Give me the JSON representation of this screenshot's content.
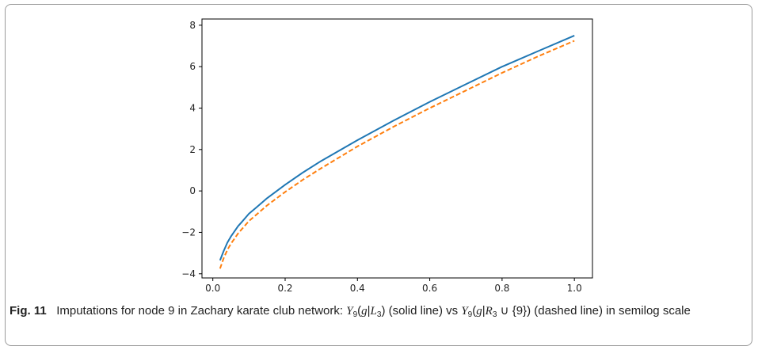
{
  "figure": {
    "label": "Fig. 11",
    "caption": {
      "intro": "Imputations for node 9 in Zachary karate club network:",
      "solid_desc": "(solid line) vs",
      "dashed_desc": "(dashed line) in semilog scale",
      "expr_solid": {
        "y": "Y",
        "y_sub": "9",
        "g": "g",
        "set": "L",
        "set_sub": "3"
      },
      "expr_dashed": {
        "y": "Y",
        "y_sub": "9",
        "g": "g",
        "set": "R",
        "set_sub": "3",
        "union": "∪ {9}"
      }
    }
  },
  "chart_data": {
    "type": "line",
    "xlim": [
      -0.03,
      1.05
    ],
    "ylim": [
      -4.2,
      8.3
    ],
    "xticks": [
      0.0,
      0.2,
      0.4,
      0.6,
      0.8,
      1.0
    ],
    "xtick_labels": [
      "0.0",
      "0.2",
      "0.4",
      "0.6",
      "0.8",
      "1.0"
    ],
    "yticks": [
      -4,
      -2,
      0,
      2,
      4,
      6,
      8
    ],
    "ytick_labels": [
      "−4",
      "−2",
      "0",
      "2",
      "4",
      "6",
      "8"
    ],
    "grid": false,
    "series": [
      {
        "style": "solid",
        "color": "#1f77b4",
        "x": [
          0.02,
          0.03,
          0.04,
          0.05,
          0.06,
          0.07,
          0.08,
          0.1,
          0.12,
          0.15,
          0.2,
          0.25,
          0.3,
          0.4,
          0.5,
          0.6,
          0.7,
          0.8,
          0.9,
          1.0
        ],
        "y": [
          -3.35,
          -2.9,
          -2.5,
          -2.2,
          -1.95,
          -1.7,
          -1.5,
          -1.1,
          -0.8,
          -0.35,
          0.3,
          0.9,
          1.45,
          2.45,
          3.4,
          4.3,
          5.15,
          6.0,
          6.75,
          7.5
        ]
      },
      {
        "style": "dashed",
        "color": "#ff7f0e",
        "x": [
          0.02,
          0.03,
          0.04,
          0.05,
          0.06,
          0.07,
          0.08,
          0.1,
          0.12,
          0.15,
          0.2,
          0.25,
          0.3,
          0.4,
          0.5,
          0.6,
          0.7,
          0.8,
          0.9,
          1.0
        ],
        "y": [
          -3.75,
          -3.25,
          -2.85,
          -2.55,
          -2.3,
          -2.05,
          -1.85,
          -1.45,
          -1.15,
          -0.7,
          -0.05,
          0.55,
          1.1,
          2.15,
          3.1,
          4.0,
          4.85,
          5.7,
          6.5,
          7.25
        ]
      }
    ]
  }
}
